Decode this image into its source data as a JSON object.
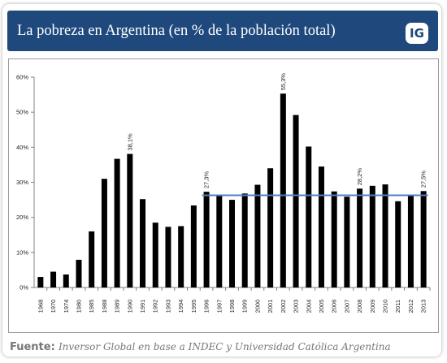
{
  "header": {
    "title": "La pobreza en Argentina (en % de la población total)",
    "logo": "IG"
  },
  "source": {
    "label": "Fuente:",
    "text": "Inversor Global en base a INDEC y Universidad Católica Argentina"
  },
  "colors": {
    "header_bg": "#1f497d",
    "bar": "#000000",
    "reference_line": "#4f81bd"
  },
  "chart_data": {
    "type": "bar",
    "title": "La pobreza en Argentina (en % de la población total)",
    "xlabel": "",
    "ylabel": "",
    "categories": [
      "1968",
      "1970",
      "1974",
      "1980",
      "1985",
      "1988",
      "1989",
      "1990",
      "1991",
      "1992",
      "1993",
      "1994",
      "1995",
      "1996",
      "1997",
      "1998",
      "1999",
      "2000",
      "2001",
      "2002",
      "2003",
      "2004",
      "2005",
      "2006",
      "2007",
      "2008",
      "2009",
      "2010",
      "2011",
      "2012",
      "2013"
    ],
    "values": [
      3.0,
      4.5,
      3.7,
      7.9,
      16.0,
      31.0,
      36.7,
      38.1,
      25.2,
      18.5,
      17.3,
      17.5,
      23.4,
      27.3,
      26.2,
      25.0,
      26.8,
      29.3,
      34.0,
      55.3,
      49.2,
      40.2,
      34.5,
      27.4,
      25.9,
      28.2,
      29.0,
      29.4,
      24.6,
      26.4,
      27.5
    ],
    "data_labels": [
      {
        "category": "1990",
        "text": "38,1%"
      },
      {
        "category": "1996",
        "text": "27,3%"
      },
      {
        "category": "2002",
        "text": "55,3%"
      },
      {
        "category": "2008",
        "text": "28,2%"
      },
      {
        "category": "2013",
        "text": "27,5%"
      }
    ],
    "yticks": [
      "0%",
      "10%",
      "20%",
      "30%",
      "40%",
      "50%",
      "60%"
    ],
    "ylim": [
      0,
      60
    ],
    "reference_line": {
      "from": "1996",
      "to": "2013",
      "value": 26.3
    },
    "grid": false,
    "legend": "none"
  }
}
